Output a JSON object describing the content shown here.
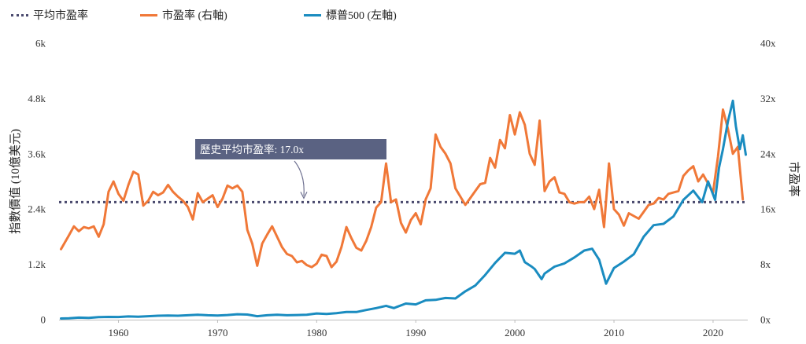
{
  "legend": {
    "avg_label": "平均市盈率",
    "pe_label": "市盈率 (右軸)",
    "sp_label": "標普500 (左軸)"
  },
  "chart_data": {
    "type": "line",
    "title": "",
    "xlabel": "",
    "ylabel_left": "指數價值 (10億美元)",
    "ylabel_right": "市盈率",
    "xlim": [
      1954,
      2023.5
    ],
    "ylim_left": [
      0,
      6000
    ],
    "ylim_right": [
      0,
      40
    ],
    "x_ticks": [
      1960,
      1970,
      1980,
      1990,
      2000,
      2010,
      2020
    ],
    "x_tick_labels": [
      "1960",
      "1970",
      "1980",
      "1990",
      "2000",
      "2010",
      "2020"
    ],
    "y_left_ticks": [
      0,
      1200,
      2400,
      3600,
      4800,
      6000
    ],
    "y_left_tick_labels": [
      "0",
      "1.2k",
      "2.4k",
      "3.6k",
      "4.8k",
      "6k"
    ],
    "y_right_ticks": [
      0,
      8,
      16,
      24,
      32,
      40
    ],
    "y_right_tick_labels": [
      "0x",
      "8x",
      "16x",
      "24x",
      "32x",
      "40x"
    ],
    "grid": false,
    "legend_position": "top",
    "colors": {
      "average": "#4a4a6e",
      "pe": "#f07838",
      "sp500": "#1a8cc0",
      "callout_bg": "#5a6282"
    },
    "annotation": {
      "text": "歷史平均市盈率: 17.0x",
      "x": 1978.7,
      "y_right": 17.0
    },
    "series": [
      {
        "name": "平均市盈率",
        "axis": "right",
        "style": "dotted",
        "x": [
          1954,
          2023.3
        ],
        "y": [
          17.0,
          17.0
        ]
      },
      {
        "name": "市盈率 (右軸)",
        "axis": "right",
        "style": "solid",
        "x": [
          1954.2,
          1955.0,
          1955.5,
          1956.0,
          1956.5,
          1957.0,
          1957.5,
          1958.0,
          1958.5,
          1959.0,
          1959.5,
          1960.0,
          1960.5,
          1961.0,
          1961.5,
          1962.0,
          1962.5,
          1963.0,
          1963.5,
          1964.0,
          1964.5,
          1965.0,
          1965.5,
          1966.0,
          1966.5,
          1967.0,
          1967.5,
          1968.0,
          1968.5,
          1969.0,
          1969.5,
          1970.0,
          1970.5,
          1971.0,
          1971.5,
          1972.0,
          1972.5,
          1973.0,
          1973.5,
          1974.0,
          1974.5,
          1975.0,
          1975.5,
          1976.0,
          1976.5,
          1977.0,
          1977.5,
          1978.0,
          1978.5,
          1979.0,
          1979.5,
          1980.0,
          1980.5,
          1981.0,
          1981.5,
          1982.0,
          1982.5,
          1983.0,
          1983.5,
          1984.0,
          1984.5,
          1985.0,
          1985.5,
          1986.0,
          1986.5,
          1987.0,
          1987.5,
          1988.0,
          1988.5,
          1989.0,
          1989.5,
          1990.0,
          1990.5,
          1991.0,
          1991.5,
          1992.0,
          1992.5,
          1993.0,
          1993.5,
          1994.0,
          1994.5,
          1995.0,
          1995.5,
          1996.0,
          1996.5,
          1997.0,
          1997.5,
          1998.0,
          1998.5,
          1999.0,
          1999.5,
          2000.0,
          2000.5,
          2001.0,
          2001.5,
          2002.0,
          2002.5,
          2003.0,
          2003.5,
          2004.0,
          2004.5,
          2005.0,
          2005.5,
          2006.0,
          2006.5,
          2007.0,
          2007.5,
          2008.0,
          2008.5,
          2009.0,
          2009.5,
          2010.0,
          2010.5,
          2011.0,
          2011.5,
          2012.0,
          2012.5,
          2013.0,
          2013.5,
          2014.0,
          2014.5,
          2015.0,
          2015.5,
          2016.0,
          2016.5,
          2017.0,
          2017.5,
          2018.0,
          2018.5,
          2019.0,
          2020.0,
          2020.5,
          2021.0,
          2021.5,
          2022.0,
          2022.5,
          2023.0
        ],
        "y": [
          10.2,
          12.2,
          13.5,
          12.8,
          13.4,
          13.2,
          13.5,
          12.0,
          13.8,
          18.5,
          20.0,
          18.2,
          17.2,
          19.5,
          21.4,
          21.0,
          16.5,
          17.2,
          18.5,
          18.0,
          18.4,
          19.5,
          18.5,
          17.8,
          17.2,
          16.3,
          14.5,
          18.3,
          17.0,
          17.5,
          18.0,
          16.3,
          17.5,
          19.4,
          19.0,
          19.4,
          18.5,
          13.0,
          11.0,
          7.8,
          11.0,
          12.3,
          13.5,
          12.0,
          10.5,
          9.5,
          9.2,
          8.3,
          8.5,
          7.9,
          7.6,
          8.1,
          9.4,
          9.2,
          7.6,
          8.4,
          10.5,
          13.4,
          11.8,
          10.4,
          10.0,
          11.4,
          13.4,
          16.2,
          17.0,
          22.6,
          17.0,
          17.4,
          14.0,
          12.6,
          14.4,
          15.4,
          13.8,
          17.4,
          19.0,
          26.8,
          25.0,
          24.0,
          22.6,
          19.0,
          17.8,
          16.6,
          17.6,
          18.6,
          19.6,
          19.8,
          23.4,
          22.0,
          26.0,
          24.8,
          29.6,
          26.8,
          30.0,
          28.2,
          24.0,
          22.4,
          28.8,
          18.6,
          20.0,
          20.6,
          18.4,
          18.2,
          17.0,
          16.8,
          17.0,
          17.0,
          17.8,
          16.0,
          18.8,
          13.4,
          22.6,
          16.0,
          15.2,
          13.6,
          15.4,
          15.0,
          14.6,
          15.6,
          16.6,
          16.8,
          17.6,
          17.4,
          18.2,
          18.4,
          18.6,
          20.8,
          21.6,
          22.2,
          20.0,
          21.0,
          18.4,
          23.6,
          30.4,
          27.6,
          24.0,
          25.0,
          17.4
        ]
      },
      {
        "name": "標普500 (左軸)",
        "axis": "left",
        "style": "solid",
        "x": [
          1954.2,
          1955.0,
          1956.0,
          1957.0,
          1958.0,
          1959.0,
          1960.0,
          1961.0,
          1962.0,
          1963.0,
          1964.0,
          1965.0,
          1966.0,
          1967.0,
          1968.0,
          1969.0,
          1970.0,
          1971.0,
          1972.0,
          1973.0,
          1974.0,
          1975.0,
          1976.0,
          1977.0,
          1978.0,
          1979.0,
          1980.0,
          1981.0,
          1982.0,
          1983.0,
          1984.0,
          1985.0,
          1986.0,
          1987.0,
          1987.8,
          1988.0,
          1989.0,
          1990.0,
          1991.0,
          1992.0,
          1993.0,
          1994.0,
          1995.0,
          1996.0,
          1997.0,
          1998.0,
          1999.0,
          2000.0,
          2000.5,
          2001.0,
          2001.7,
          2002.0,
          2002.7,
          2003.0,
          2004.0,
          2005.0,
          2006.0,
          2007.0,
          2007.8,
          2008.5,
          2009.2,
          2010.0,
          2011.0,
          2012.0,
          2013.0,
          2014.0,
          2015.0,
          2016.0,
          2017.0,
          2018.0,
          2018.9,
          2019.5,
          2020.2,
          2020.6,
          2021.0,
          2021.5,
          2022.0,
          2022.3,
          2022.7,
          2023.0,
          2023.3
        ],
        "y": [
          25,
          30,
          45,
          40,
          55,
          60,
          58,
          70,
          63,
          75,
          85,
          90,
          85,
          95,
          105,
          95,
          90,
          100,
          118,
          110,
          75,
          95,
          105,
          95,
          100,
          108,
          135,
          125,
          140,
          165,
          165,
          210,
          250,
          300,
          250,
          270,
          350,
          330,
          420,
          430,
          470,
          460,
          615,
          740,
          970,
          1230,
          1450,
          1430,
          1500,
          1250,
          1150,
          1100,
          880,
          1000,
          1150,
          1220,
          1350,
          1500,
          1540,
          1300,
          780,
          1120,
          1260,
          1420,
          1800,
          2050,
          2080,
          2240,
          2600,
          2800,
          2550,
          3000,
          2600,
          3300,
          3700,
          4300,
          4750,
          4200,
          3700,
          4000,
          3580
        ]
      }
    ]
  }
}
